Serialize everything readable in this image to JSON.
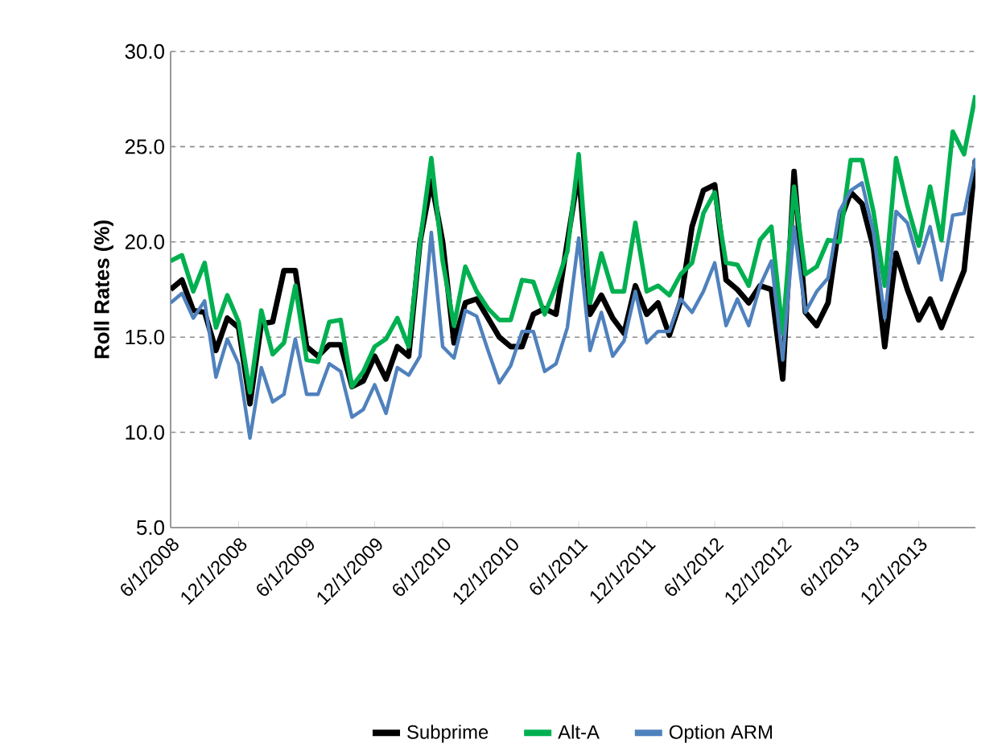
{
  "chart_data": {
    "type": "line",
    "ylabel": "Roll Rates (%)",
    "categories": [
      "6/1/2008",
      null,
      null,
      null,
      null,
      null,
      "12/1/2008",
      null,
      null,
      null,
      null,
      null,
      "6/1/2009",
      null,
      null,
      null,
      null,
      null,
      "12/1/2009",
      null,
      null,
      null,
      null,
      null,
      "6/1/2010",
      null,
      null,
      null,
      null,
      null,
      "12/1/2010",
      null,
      null,
      null,
      null,
      null,
      "6/1/2011",
      null,
      null,
      null,
      null,
      null,
      "12/1/2011",
      null,
      null,
      null,
      null,
      null,
      "6/1/2012",
      null,
      null,
      null,
      null,
      null,
      "12/1/2012",
      null,
      null,
      null,
      null,
      null,
      "6/1/2013",
      null,
      null,
      null,
      null,
      null,
      "12/1/2013",
      null,
      null,
      null,
      null,
      null
    ],
    "series": [
      {
        "name": "Subprime",
        "color": "#000000",
        "values": [
          17.5,
          18.0,
          16.4,
          16.3,
          14.3,
          16.0,
          15.5,
          11.5,
          15.7,
          15.8,
          18.5,
          18.5,
          14.5,
          14.0,
          14.6,
          14.6,
          12.4,
          12.7,
          14.0,
          12.8,
          14.5,
          14.0,
          20.0,
          23.2,
          20.0,
          14.7,
          16.8,
          17.0,
          16.0,
          15.0,
          14.5,
          14.5,
          16.2,
          16.5,
          16.2,
          20.0,
          23.7,
          16.2,
          17.2,
          16.0,
          15.2,
          17.7,
          16.2,
          16.8,
          15.1,
          16.9,
          20.8,
          22.7,
          23.0,
          18.0,
          17.5,
          16.8,
          17.7,
          17.5,
          12.8,
          23.7,
          16.3,
          15.6,
          16.8,
          21.0,
          22.6,
          22.0,
          19.7,
          14.5,
          19.4,
          17.5,
          15.9,
          17.0,
          15.5,
          17.0,
          18.5,
          24.3
        ]
      },
      {
        "name": "Alt-A",
        "color": "#00b050",
        "values": [
          19.0,
          19.3,
          17.4,
          18.9,
          15.5,
          17.2,
          15.8,
          12.1,
          16.4,
          14.1,
          14.7,
          17.7,
          13.8,
          13.7,
          15.8,
          15.9,
          12.4,
          13.2,
          14.5,
          14.9,
          16.0,
          14.5,
          20.0,
          24.4,
          19.0,
          15.6,
          18.7,
          17.4,
          16.5,
          15.9,
          15.9,
          18.0,
          17.9,
          16.2,
          17.7,
          19.5,
          24.6,
          16.8,
          19.4,
          17.4,
          17.4,
          21.0,
          17.4,
          17.7,
          17.2,
          18.3,
          18.9,
          21.5,
          22.6,
          18.9,
          18.8,
          17.7,
          20.1,
          20.8,
          15.2,
          22.9,
          18.3,
          18.7,
          20.1,
          20.0,
          24.3,
          24.3,
          21.6,
          17.7,
          24.4,
          21.9,
          19.8,
          22.9,
          20.1,
          25.8,
          24.6,
          27.7
        ]
      },
      {
        "name": "Option ARM",
        "color": "#4f81bd",
        "values": [
          16.8,
          17.3,
          16.0,
          16.9,
          12.9,
          14.9,
          13.6,
          9.7,
          13.4,
          11.6,
          12.0,
          14.9,
          12.0,
          12.0,
          13.6,
          13.2,
          10.8,
          11.2,
          12.5,
          11.0,
          13.4,
          13.0,
          14.0,
          20.5,
          14.5,
          13.9,
          16.4,
          16.1,
          14.3,
          12.6,
          13.5,
          15.3,
          15.3,
          13.2,
          13.6,
          15.5,
          20.2,
          14.3,
          16.3,
          14.0,
          14.8,
          17.4,
          14.7,
          15.3,
          15.3,
          17.0,
          16.3,
          17.4,
          18.9,
          15.6,
          17.0,
          15.6,
          17.7,
          19.0,
          13.8,
          20.8,
          16.3,
          17.4,
          18.1,
          21.6,
          22.7,
          23.1,
          20.5,
          16.0,
          21.6,
          21.0,
          18.9,
          20.8,
          18.0,
          21.4,
          21.5,
          24.4
        ]
      }
    ],
    "ylim": [
      5,
      30
    ],
    "yticks": [
      {
        "value": 5,
        "label": "5.0"
      },
      {
        "value": 10,
        "label": "10.0"
      },
      {
        "value": 15,
        "label": "15.0"
      },
      {
        "value": 20,
        "label": "20.0"
      },
      {
        "value": 25,
        "label": "25.0"
      },
      {
        "value": 30,
        "label": "30.0"
      }
    ],
    "grid": "y",
    "legend": "bottom",
    "marker": "none",
    "line_style": "solid"
  }
}
